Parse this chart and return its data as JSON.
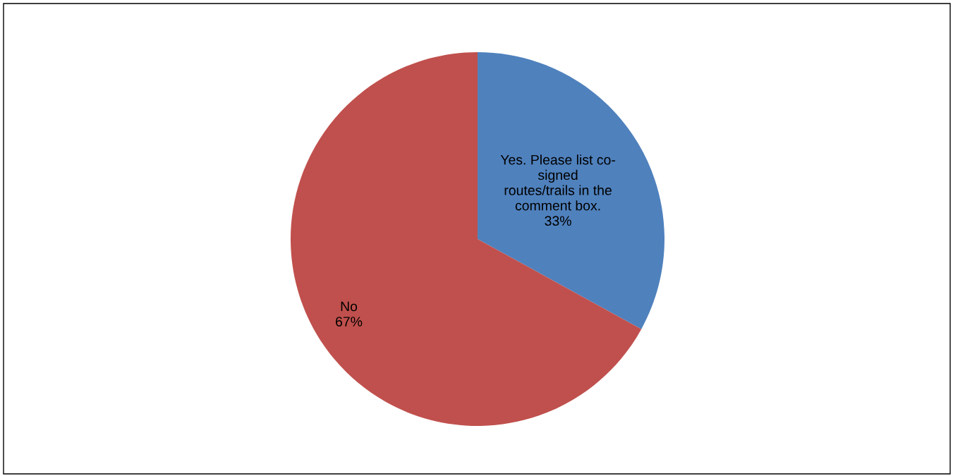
{
  "chart_data": {
    "type": "pie",
    "categories": [
      "Yes. Please list co-\nsigned\nroutes/trails in the\ncomment box.",
      "No"
    ],
    "values": [
      33,
      67
    ],
    "colors": [
      "#4f81bd",
      "#c0504d"
    ],
    "value_labels": [
      "33%",
      "67%"
    ],
    "legend": false
  }
}
